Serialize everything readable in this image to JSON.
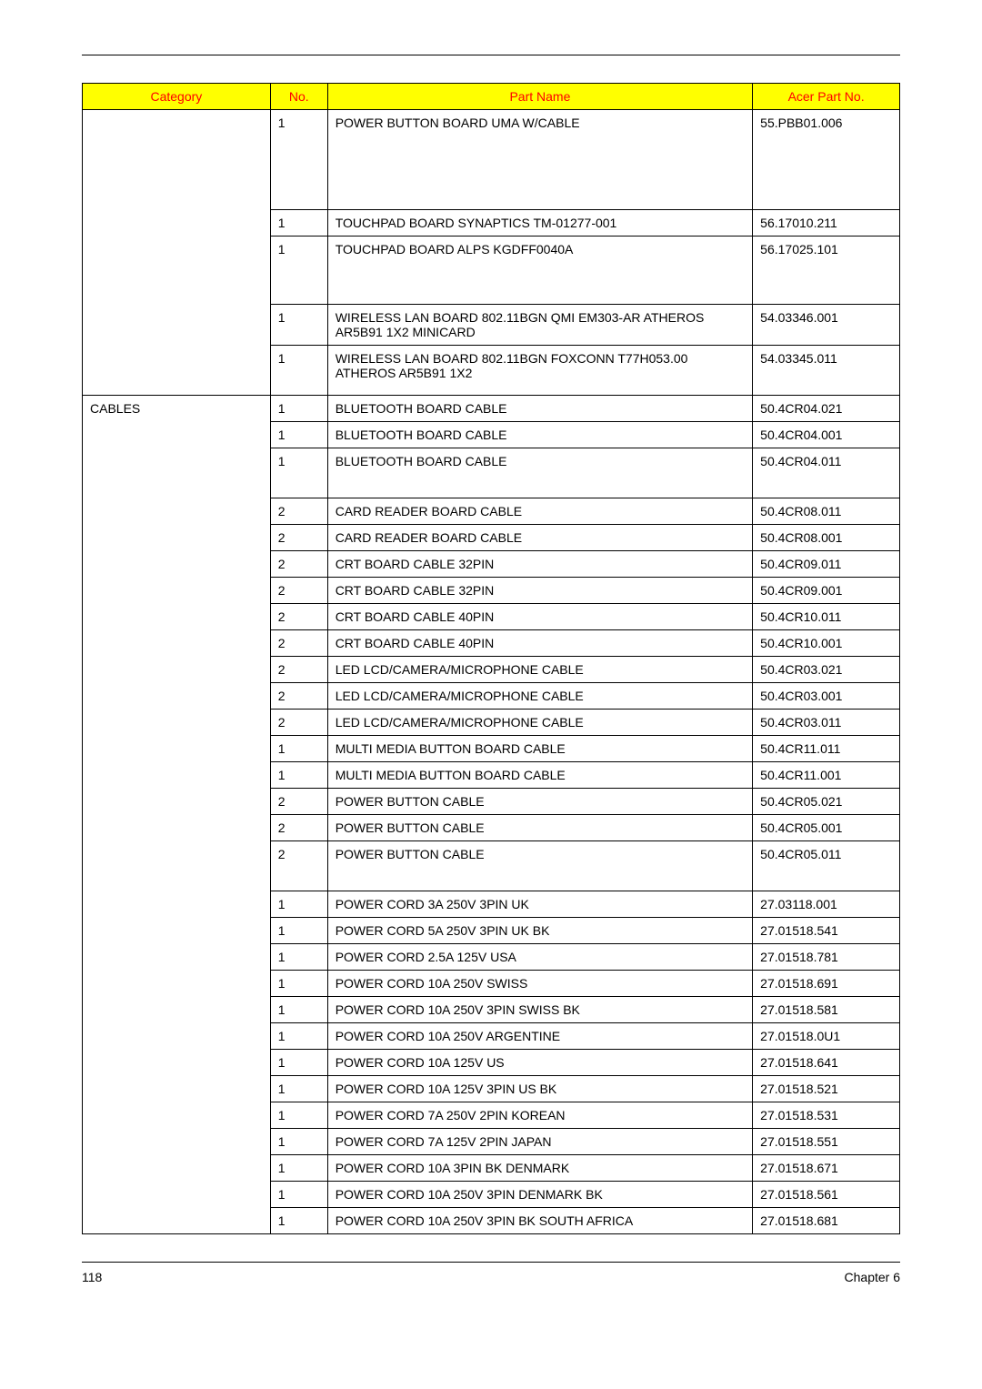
{
  "headers": {
    "category": "Category",
    "no": "No.",
    "partName": "Part Name",
    "acerPart": "Acer Part No.",
    "bg": "#ffff00",
    "fg": "#ff0000"
  },
  "groups": [
    {
      "category": "",
      "rows": [
        {
          "no": "1",
          "name": "POWER BUTTON BOARD UMA W/CABLE",
          "part": "55.PBB01.006",
          "h": "tall"
        },
        {
          "no": "1",
          "name": "TOUCHPAD BOARD SYNAPTICS TM-01277-001",
          "part": "56.17010.211"
        },
        {
          "no": "1",
          "name": "TOUCHPAD BOARD ALPS KGDFF0040A",
          "part": "56.17025.101",
          "h": "med"
        },
        {
          "no": "1",
          "name": "WIRELESS LAN BOARD 802.11BGN QMI EM303-AR ATHEROS AR5B91 1X2 MINICARD",
          "part": "54.03346.001"
        },
        {
          "no": "1",
          "name": "WIRELESS LAN BOARD 802.11BGN FOXCONN T77H053.00 ATHEROS AR5B91 1X2",
          "part": "54.03345.011",
          "h": "sm2"
        }
      ]
    },
    {
      "category": "CABLES",
      "rows": [
        {
          "no": "1",
          "name": "BLUETOOTH BOARD CABLE",
          "part": "50.4CR04.021"
        },
        {
          "no": "1",
          "name": "BLUETOOTH BOARD CABLE",
          "part": "50.4CR04.001"
        },
        {
          "no": "1",
          "name": "BLUETOOTH BOARD CABLE",
          "part": "50.4CR04.011",
          "h": "sm2"
        },
        {
          "no": "2",
          "name": "CARD READER BOARD CABLE",
          "part": "50.4CR08.011"
        },
        {
          "no": "2",
          "name": "CARD READER BOARD CABLE",
          "part": "50.4CR08.001"
        },
        {
          "no": "2",
          "name": "CRT BOARD CABLE 32PIN",
          "part": "50.4CR09.011"
        },
        {
          "no": "2",
          "name": "CRT BOARD CABLE 32PIN",
          "part": "50.4CR09.001"
        },
        {
          "no": "2",
          "name": "CRT BOARD CABLE 40PIN",
          "part": "50.4CR10.011"
        },
        {
          "no": "2",
          "name": "CRT BOARD CABLE 40PIN",
          "part": "50.4CR10.001"
        },
        {
          "no": "2",
          "name": "LED LCD/CAMERA/MICROPHONE CABLE",
          "part": "50.4CR03.021"
        },
        {
          "no": "2",
          "name": "LED LCD/CAMERA/MICROPHONE CABLE",
          "part": "50.4CR03.001"
        },
        {
          "no": "2",
          "name": "LED LCD/CAMERA/MICROPHONE CABLE",
          "part": "50.4CR03.011"
        },
        {
          "no": "1",
          "name": "MULTI MEDIA BUTTON BOARD CABLE",
          "part": "50.4CR11.011"
        },
        {
          "no": "1",
          "name": "MULTI MEDIA BUTTON BOARD CABLE",
          "part": "50.4CR11.001"
        },
        {
          "no": "2",
          "name": "POWER BUTTON CABLE",
          "part": "50.4CR05.021"
        },
        {
          "no": "2",
          "name": "POWER BUTTON CABLE",
          "part": "50.4CR05.001"
        },
        {
          "no": "2",
          "name": "POWER BUTTON CABLE",
          "part": "50.4CR05.011",
          "h": "sm2"
        },
        {
          "no": "1",
          "name": "POWER CORD 3A 250V 3PIN UK",
          "part": "27.03118.001"
        },
        {
          "no": "1",
          "name": "POWER CORD 5A 250V 3PIN UK BK",
          "part": "27.01518.541"
        },
        {
          "no": "1",
          "name": "POWER CORD 2.5A 125V USA",
          "part": "27.01518.781"
        },
        {
          "no": "1",
          "name": "POWER CORD 10A 250V SWISS",
          "part": "27.01518.691"
        },
        {
          "no": "1",
          "name": "POWER CORD 10A 250V 3PIN SWISS BK",
          "part": "27.01518.581"
        },
        {
          "no": "1",
          "name": "POWER CORD 10A 250V ARGENTINE",
          "part": "27.01518.0U1"
        },
        {
          "no": "1",
          "name": "POWER CORD 10A 125V US",
          "part": "27.01518.641"
        },
        {
          "no": "1",
          "name": "POWER CORD 10A 125V 3PIN US BK",
          "part": "27.01518.521"
        },
        {
          "no": "1",
          "name": "POWER CORD 7A 250V 2PIN KOREAN",
          "part": "27.01518.531"
        },
        {
          "no": "1",
          "name": "POWER CORD 7A 125V 2PIN JAPAN",
          "part": "27.01518.551"
        },
        {
          "no": "1",
          "name": "POWER CORD 10A 3PIN BK DENMARK",
          "part": "27.01518.671"
        },
        {
          "no": "1",
          "name": "POWER CORD 10A 250V 3PIN DENMARK BK",
          "part": "27.01518.561"
        },
        {
          "no": "1",
          "name": "POWER CORD 10A 250V 3PIN BK SOUTH AFRICA",
          "part": "27.01518.681"
        }
      ]
    }
  ],
  "footer": {
    "pageNum": "118",
    "chapter": "Chapter 6"
  }
}
